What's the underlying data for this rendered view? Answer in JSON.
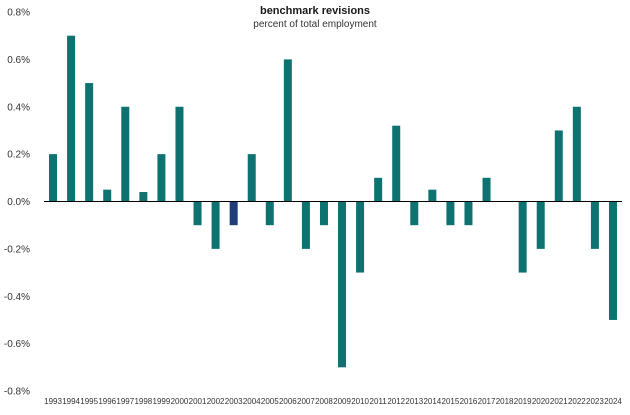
{
  "chart_data": {
    "type": "bar",
    "title": "benchmark revisions",
    "subtitle": "percent of total employment",
    "xlabel": "",
    "ylabel": "",
    "ylim": [
      -0.8,
      0.8
    ],
    "yticks": [
      0.8,
      0.6,
      0.4,
      0.2,
      0.0,
      -0.2,
      -0.4,
      -0.6,
      -0.8
    ],
    "ytick_labels": [
      "0.8%",
      "0.6%",
      "0.4%",
      "0.2%",
      "0.0%",
      "-0.2%",
      "-0.4%",
      "-0.6%",
      "-0.8%"
    ],
    "grid": false,
    "categories": [
      "1993",
      "1994",
      "1995",
      "1996",
      "1997",
      "1998",
      "1999",
      "2000",
      "2001",
      "2002",
      "2003",
      "2004",
      "2005",
      "2006",
      "2007",
      "2008",
      "2009",
      "2010",
      "2011",
      "2012",
      "2013",
      "2014",
      "2015",
      "2016",
      "2017",
      "2018",
      "2019",
      "2020",
      "2021",
      "2022",
      "2023",
      "2024"
    ],
    "values": [
      0.2,
      0.7,
      0.5,
      0.05,
      0.4,
      0.04,
      0.2,
      0.4,
      -0.1,
      -0.2,
      -0.1,
      0.2,
      -0.1,
      0.6,
      -0.2,
      -0.1,
      -0.7,
      -0.3,
      0.1,
      0.32,
      -0.1,
      0.05,
      -0.1,
      -0.1,
      0.1,
      0.0,
      -0.3,
      -0.2,
      0.3,
      0.4,
      -0.2,
      -0.5
    ],
    "colors": {
      "default": "#0e7270",
      "highlight": "#1f3d78",
      "axis": "#000000"
    },
    "highlight_category": "2003"
  }
}
